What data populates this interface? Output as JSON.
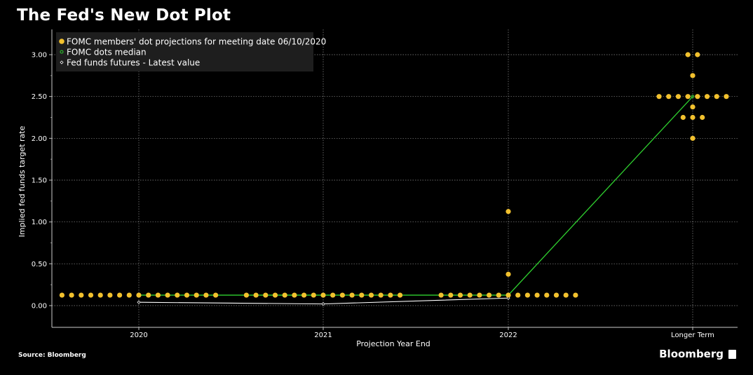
{
  "header": {
    "title": "The Fed's New Dot Plot"
  },
  "footer": {
    "source": "Source: Bloomberg",
    "brand": "Bloomberg"
  },
  "colors": {
    "dots": "#f2c12e",
    "median": "#2fd12f",
    "futures": "#ffffff",
    "grid": "#8a8a8a",
    "legend_bg": "#1e1e1e"
  },
  "chart_data": {
    "type": "scatter",
    "xlabel": "Projection Year End",
    "ylabel": "Implied fed funds target rate",
    "categories": [
      "2020",
      "2021",
      "2022",
      "Longer Term"
    ],
    "ylim": [
      -0.25,
      3.3
    ],
    "yticks": [
      0.0,
      0.5,
      1.0,
      1.5,
      2.0,
      2.5,
      3.0
    ],
    "ytick_labels": [
      "0.00",
      "0.50",
      "1.00",
      "1.50",
      "2.00",
      "2.50",
      "3.00"
    ],
    "grid": true,
    "legend_position": "top-left",
    "legend": [
      "FOMC members' dot projections for meeting date 06/10/2020",
      "FOMC dots median",
      "Fed funds futures - Latest value"
    ],
    "dots": [
      {
        "category": "2020",
        "rate": 0.125,
        "count": 17
      },
      {
        "category": "2021",
        "rate": 0.125,
        "count": 17
      },
      {
        "category": "2022",
        "rate": 0.125,
        "count": 15
      },
      {
        "category": "2022",
        "rate": 0.375,
        "count": 1
      },
      {
        "category": "2022",
        "rate": 1.125,
        "count": 1
      },
      {
        "category": "Longer Term",
        "rate": 2.0,
        "count": 1
      },
      {
        "category": "Longer Term",
        "rate": 2.25,
        "count": 3
      },
      {
        "category": "Longer Term",
        "rate": 2.375,
        "count": 1
      },
      {
        "category": "Longer Term",
        "rate": 2.5,
        "count": 8
      },
      {
        "category": "Longer Term",
        "rate": 2.75,
        "count": 1
      },
      {
        "category": "Longer Term",
        "rate": 3.0,
        "count": 2
      }
    ],
    "series": [
      {
        "name": "FOMC dots median",
        "x": [
          "2020",
          "2021",
          "2022",
          "Longer Term"
        ],
        "values": [
          0.125,
          0.125,
          0.125,
          2.5
        ]
      },
      {
        "name": "Fed funds futures - Latest value",
        "x": [
          "2020",
          "2021",
          "2022"
        ],
        "values": [
          0.04,
          0.02,
          0.09
        ]
      }
    ]
  }
}
